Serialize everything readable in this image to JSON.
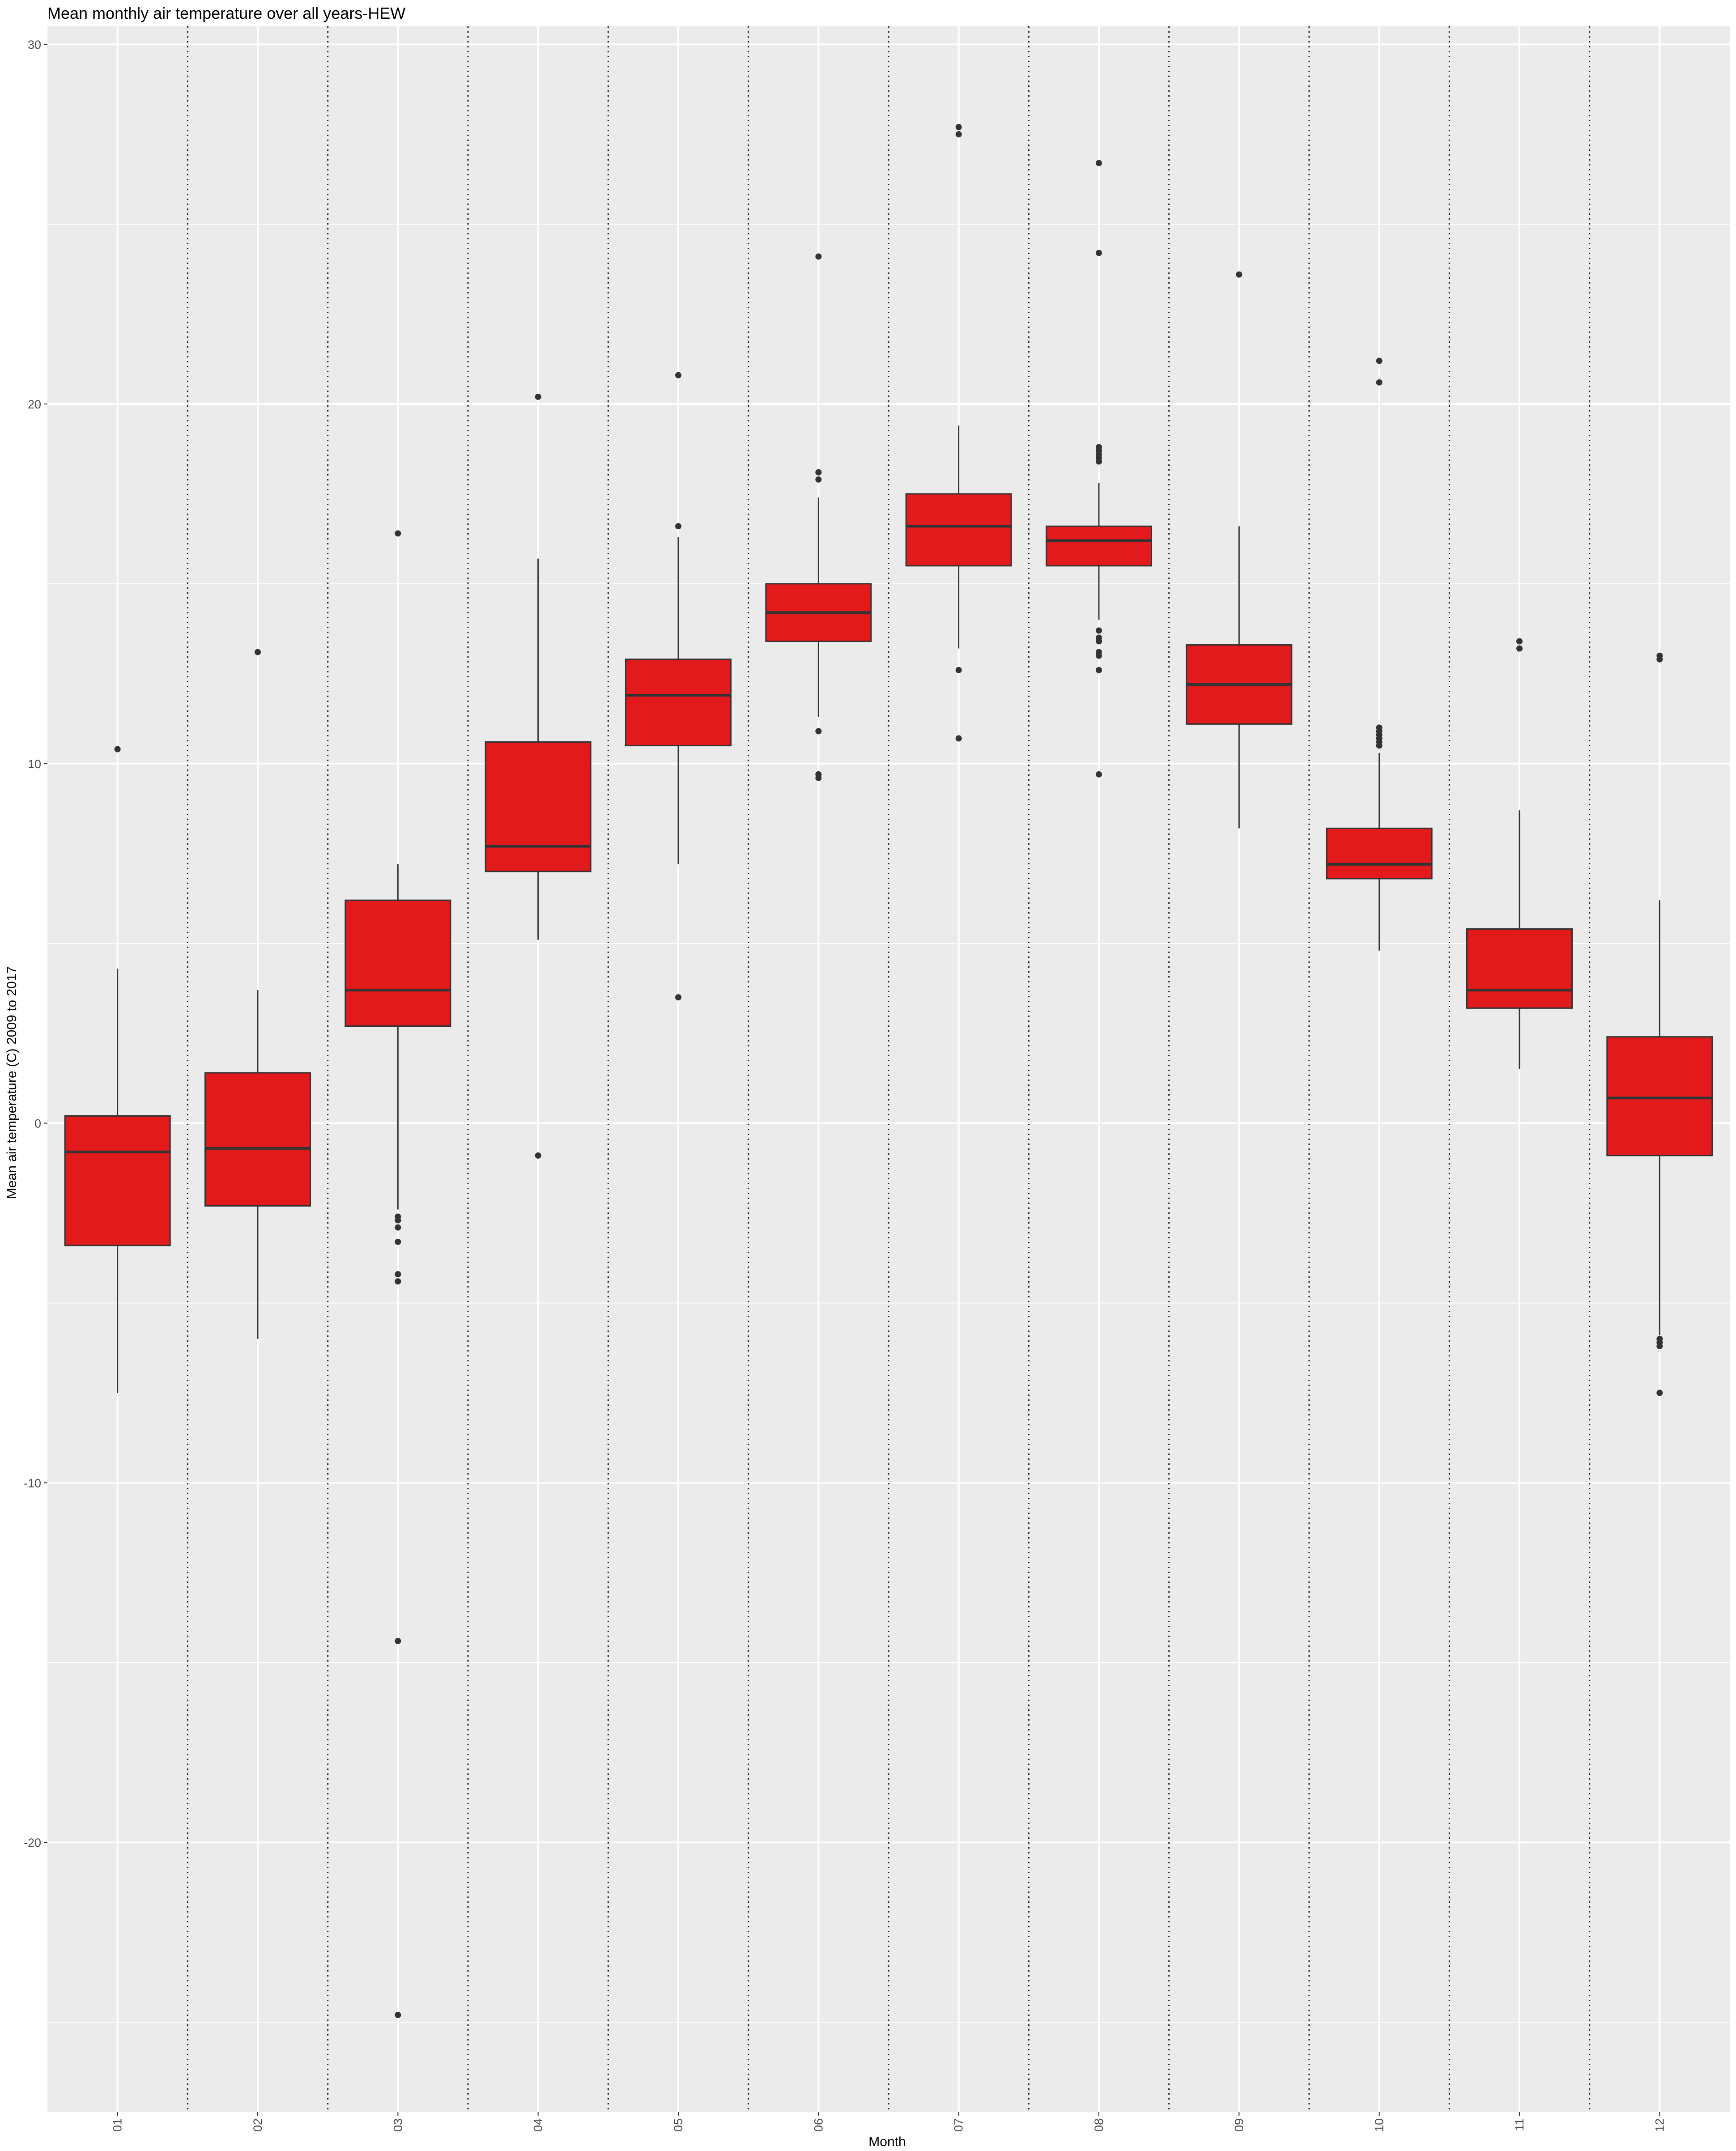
{
  "chart_data": {
    "type": "boxplot",
    "title": "Mean monthly air temperature over all years-HEW",
    "xlabel": "Month",
    "ylabel": "Mean air temperature (C) 2009 to 2017",
    "ylim": [
      -27.5,
      30.5
    ],
    "yticks": [
      -20,
      -10,
      0,
      10,
      20,
      30
    ],
    "ytick_labels": [
      "-20",
      "-10",
      "0",
      "10",
      "20",
      "30"
    ],
    "grid": true,
    "separators": "dotted",
    "colors": {
      "box_fill": "#e31a1c",
      "box_line": "#333333",
      "panel_bg": "#ebebeb",
      "grid": "#ffffff"
    },
    "boxes": [
      {
        "category": "01",
        "lower_whisker": -7.5,
        "q1": -3.4,
        "median": -0.8,
        "q3": 0.2,
        "upper_whisker": 4.3,
        "outliers": [
          10.4
        ]
      },
      {
        "category": "02",
        "lower_whisker": -6.0,
        "q1": -2.3,
        "median": -0.7,
        "q3": 1.4,
        "upper_whisker": 3.7,
        "outliers": [
          13.1
        ]
      },
      {
        "category": "03",
        "lower_whisker": -2.4,
        "q1": 2.7,
        "median": 3.7,
        "q3": 6.2,
        "upper_whisker": 7.2,
        "outliers": [
          16.4,
          -2.6,
          -2.7,
          -2.9,
          -3.3,
          -4.2,
          -4.4,
          -14.4,
          -24.8
        ]
      },
      {
        "category": "04",
        "lower_whisker": 5.1,
        "q1": 7.0,
        "median": 7.7,
        "q3": 10.6,
        "upper_whisker": 15.7,
        "outliers": [
          20.2,
          -0.9
        ]
      },
      {
        "category": "05",
        "lower_whisker": 7.2,
        "q1": 10.5,
        "median": 11.9,
        "q3": 12.9,
        "upper_whisker": 16.3,
        "outliers": [
          20.8,
          16.6,
          3.5
        ]
      },
      {
        "category": "06",
        "lower_whisker": 11.3,
        "q1": 13.4,
        "median": 14.2,
        "q3": 15.0,
        "upper_whisker": 17.4,
        "outliers": [
          24.1,
          18.1,
          17.9,
          10.9,
          9.7,
          9.6
        ]
      },
      {
        "category": "07",
        "lower_whisker": 13.2,
        "q1": 15.5,
        "median": 16.6,
        "q3": 17.5,
        "upper_whisker": 19.4,
        "outliers": [
          27.7,
          27.5,
          12.6,
          10.7
        ]
      },
      {
        "category": "08",
        "lower_whisker": 14.0,
        "q1": 15.5,
        "median": 16.2,
        "q3": 16.6,
        "upper_whisker": 17.8,
        "outliers": [
          26.7,
          24.2,
          18.8,
          18.7,
          18.6,
          18.5,
          18.4,
          13.7,
          13.5,
          13.4,
          13.1,
          13.0,
          12.6,
          9.7
        ]
      },
      {
        "category": "09",
        "lower_whisker": 8.2,
        "q1": 11.1,
        "median": 12.2,
        "q3": 13.3,
        "upper_whisker": 16.6,
        "outliers": [
          23.6
        ]
      },
      {
        "category": "10",
        "lower_whisker": 4.8,
        "q1": 6.8,
        "median": 7.2,
        "q3": 8.2,
        "upper_whisker": 10.3,
        "outliers": [
          21.2,
          20.6,
          11.0,
          10.9,
          10.8,
          10.7,
          10.6,
          10.5
        ]
      },
      {
        "category": "11",
        "lower_whisker": 1.5,
        "q1": 3.2,
        "median": 3.7,
        "q3": 5.4,
        "upper_whisker": 8.7,
        "outliers": [
          13.4,
          13.2
        ]
      },
      {
        "category": "12",
        "lower_whisker": -5.9,
        "q1": -0.9,
        "median": 0.7,
        "q3": 2.4,
        "upper_whisker": 6.2,
        "outliers": [
          13.0,
          12.9,
          -6.0,
          -6.1,
          -6.2,
          -7.5
        ]
      }
    ]
  }
}
